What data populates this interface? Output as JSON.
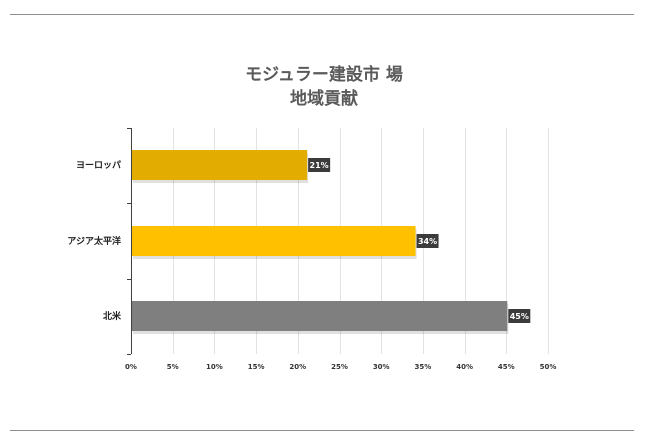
{
  "chart_data": {
    "type": "bar",
    "orientation": "horizontal",
    "title": [
      "モジュラー建設市 場",
      "地域貢献"
    ],
    "categories": [
      "ヨーロッパ",
      "アジア太平洋",
      "北米"
    ],
    "values": [
      21,
      34,
      45
    ],
    "data_labels": [
      "21%",
      "34%",
      "45%"
    ],
    "bar_colors": [
      "#E2AC00",
      "#FFC000",
      "#7F7F7F"
    ],
    "xlim": [
      0,
      50
    ],
    "x_ticks": [
      0,
      5,
      10,
      15,
      20,
      25,
      30,
      35,
      40,
      45,
      50
    ],
    "x_tick_labels": [
      "0%",
      "5%",
      "10%",
      "15%",
      "20%",
      "25%",
      "30%",
      "35%",
      "40%",
      "45%",
      "50%"
    ],
    "grid": true,
    "legend": "none"
  }
}
